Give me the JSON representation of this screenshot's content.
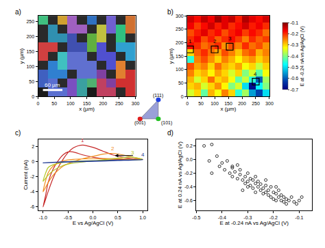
{
  "chart_data": [
    {
      "panel": "a)",
      "type": "image",
      "x_label": "x (µm)",
      "y_label": "y (µm)",
      "xlim": [
        0,
        300
      ],
      "ylim": [
        0,
        270
      ],
      "xticks": [
        0,
        50,
        100,
        150,
        200,
        250,
        300
      ],
      "yticks": [
        0,
        50,
        100,
        150,
        200,
        250
      ],
      "pixels": [
        [
          "#1a1a1a",
          "#5a6fd0",
          "#5a6fd0",
          "#7a4fc0",
          "#3aa0a0",
          "#1a1a1a",
          "#c04060",
          "#c04060",
          "#2a2a2a",
          "#d03030"
        ],
        [
          "#4060c0",
          "#5a6fd0",
          "#2a2a2a",
          "#7a4fc0",
          "#3aa0a0",
          "#50b070",
          "#c04060",
          "#8040a0",
          "#d03030",
          "#d03030"
        ],
        [
          "#4060c0",
          "#3080d0",
          "#3080d0",
          "#2a2a2a",
          "#6070d0",
          "#6070d0",
          "#8040a0",
          "#2a2a2a",
          "#e08030",
          "#d03030"
        ],
        [
          "#2a2a2a",
          "#3080d0",
          "#40c0c0",
          "#6070d0",
          "#6070d0",
          "#6070d0",
          "#2a2a2a",
          "#5050d0",
          "#e08030",
          "#2a2a2a"
        ],
        [
          "#d04040",
          "#2a2a2a",
          "#40c0c0",
          "#6070d0",
          "#6070d0",
          "#2a2a2a",
          "#5050d0",
          "#5050d0",
          "#2a2a2a",
          "#30a0d0"
        ],
        [
          "#d04040",
          "#d04040",
          "#2a2a2a",
          "#4050b0",
          "#4050b0",
          "#60b040",
          "#5050d0",
          "#2a2a2a",
          "#30a0d0",
          "#30a0d0"
        ],
        [
          "#2a2a2a",
          "#3090b0",
          "#3090b0",
          "#4050b0",
          "#2a2a2a",
          "#60b040",
          "#c0c040",
          "#2a2a2a",
          "#30c080",
          "#2a2a2a"
        ],
        [
          "#2a2a2a",
          "#3090b0",
          "#2a2a2a",
          "#a060c0",
          "#a060c0",
          "#2a2a2a",
          "#c0c040",
          "#7060d0",
          "#30c080",
          "#d07030"
        ],
        [
          "#40c080",
          "#2a2a2a",
          "#d0a030",
          "#a060c0",
          "#2a2a2a",
          "#3070c0",
          "#2a2a2a",
          "#7060d0",
          "#2a2a2a",
          "#d07030"
        ]
      ],
      "scale_bar": {
        "text": "60 µm",
        "length": 60
      },
      "orientation_key": {
        "top": "(111)",
        "bottom_left": "(001)",
        "bottom_right": "(101)"
      }
    },
    {
      "panel": "b)",
      "type": "heatmap",
      "x_label": "x (µm)",
      "y_label": "y (µm)",
      "xlim": [
        0,
        300
      ],
      "ylim": [
        0,
        300
      ],
      "xticks": [
        0,
        50,
        100,
        150,
        200,
        250,
        300
      ],
      "yticks": [
        0,
        50,
        100,
        150,
        200,
        250,
        300
      ],
      "cells": [
        [
          -0.35,
          -0.3,
          -0.42,
          -0.28,
          -0.33,
          -0.25,
          -0.3,
          -0.45,
          -0.38,
          -0.55,
          -0.62,
          -0.5
        ],
        [
          -0.3,
          -0.28,
          -0.35,
          -0.3,
          -0.26,
          -0.32,
          -0.4,
          -0.35,
          -0.5,
          -0.68,
          -0.48,
          -0.4
        ],
        [
          -0.28,
          -0.35,
          -0.3,
          -0.24,
          -0.3,
          -0.28,
          -0.33,
          -0.42,
          -0.36,
          -0.45,
          -0.6,
          -0.38
        ],
        [
          -0.25,
          -0.3,
          -0.28,
          -0.32,
          -0.27,
          -0.3,
          -0.35,
          -0.3,
          -0.4,
          -0.35,
          -0.42,
          -0.33
        ],
        [
          -0.22,
          -0.27,
          -0.25,
          -0.3,
          -0.24,
          -0.28,
          -0.3,
          -0.27,
          -0.33,
          -0.3,
          -0.36,
          -0.3
        ],
        [
          -0.45,
          -0.25,
          -0.22,
          -0.26,
          -0.3,
          -0.25,
          -0.28,
          -0.32,
          -0.28,
          -0.26,
          -0.3,
          -0.27
        ],
        [
          -0.3,
          -0.23,
          -0.2,
          -0.24,
          -0.27,
          -0.22,
          -0.25,
          -0.29,
          -0.24,
          -0.22,
          -0.28,
          -0.25
        ],
        [
          -0.18,
          -0.2,
          -0.24,
          -0.22,
          -0.2,
          -0.26,
          -0.22,
          -0.25,
          -0.2,
          -0.24,
          -0.22,
          -0.26
        ],
        [
          -0.2,
          -0.17,
          -0.22,
          -0.19,
          -0.23,
          -0.2,
          -0.18,
          -0.21,
          -0.25,
          -0.2,
          -0.23,
          -0.21
        ],
        [
          -0.22,
          -0.19,
          -0.16,
          -0.2,
          -0.18,
          -0.22,
          -0.19,
          -0.17,
          -0.21,
          -0.18,
          -0.2,
          -0.24
        ],
        [
          -0.17,
          -0.21,
          -0.18,
          -0.15,
          -0.19,
          -0.16,
          -0.2,
          -0.18,
          -0.15,
          -0.19,
          -0.17,
          -0.2
        ],
        [
          -0.15,
          -0.18,
          -0.14,
          -0.17,
          -0.12,
          -0.16,
          -0.14,
          -0.19,
          -0.13,
          -0.16,
          -0.18,
          -0.15
        ]
      ],
      "colorbar": {
        "title": "E at -0.24 nA vs Ag/AgCl (V)",
        "range": [
          -0.7,
          -0.1
        ],
        "ticks": [
          -0.1,
          -0.2,
          -0.3,
          -0.4,
          -0.5,
          -0.6,
          -0.7
        ]
      },
      "boxes": [
        {
          "label": "1",
          "x": 10,
          "y": 175
        },
        {
          "label": "2",
          "x": 100,
          "y": 175
        },
        {
          "label": "3",
          "x": 155,
          "y": 185
        },
        {
          "label": "4",
          "x": 250,
          "y": 55
        }
      ]
    },
    {
      "panel": "c)",
      "type": "line",
      "x_label": "E vs Ag/AgCl (V)",
      "y_label": "Current (nA)",
      "xlim": [
        -1.1,
        1.1
      ],
      "ylim": [
        -6.5,
        3
      ],
      "xticks": [
        {
          "value": -1,
          "label": "-1.0"
        },
        -0.5,
        {
          "value": 0,
          "label": "0.0"
        },
        0.5,
        {
          "value": 1,
          "label": "1.0"
        }
      ],
      "yticks": [
        -6,
        -4,
        -2,
        0,
        2
      ],
      "series": [
        {
          "name": "1",
          "color": "#c62828",
          "x": [
            1.0,
            0.8,
            0.6,
            0.4,
            0.2,
            0.0,
            -0.2,
            -0.3,
            -0.4,
            -0.5,
            -0.6,
            -0.7,
            -0.8,
            -0.9,
            -1.0,
            -0.95,
            -0.9,
            -0.8,
            -0.7,
            -0.6,
            -0.5,
            -0.4,
            -0.2,
            0.0,
            0.2,
            0.5,
            1.0
          ],
          "values": [
            0.3,
            0.4,
            0.6,
            0.9,
            1.4,
            1.9,
            2.2,
            2.1,
            1.8,
            1.2,
            0.3,
            -0.8,
            -2.2,
            -4.0,
            -6.0,
            -4.5,
            -2.8,
            -1.0,
            0.1,
            0.9,
            1.3,
            1.3,
            0.9,
            0.6,
            0.4,
            0.3,
            0.3
          ]
        },
        {
          "name": "2",
          "color": "#f08c1c",
          "x": [
            1.0,
            0.8,
            0.6,
            0.4,
            0.2,
            0.0,
            -0.2,
            -0.4,
            -0.6,
            -0.8,
            -0.9,
            -1.0,
            -0.9,
            -0.8,
            -0.6,
            -0.4,
            0.0,
            0.5,
            1.0
          ],
          "values": [
            0.3,
            0.6,
            0.9,
            1.1,
            1.0,
            0.7,
            0.4,
            0.0,
            -0.6,
            -1.8,
            -2.8,
            -4.0,
            -1.5,
            -0.6,
            0.1,
            0.3,
            0.4,
            0.4,
            0.3
          ]
        },
        {
          "name": "3",
          "color": "#b5c82a",
          "x": [
            1.0,
            0.8,
            0.6,
            0.4,
            0.2,
            0.0,
            -0.4,
            -0.6,
            -0.8,
            -0.9,
            -1.0,
            -0.9,
            -0.8,
            -0.5,
            0.0,
            0.5,
            1.0
          ],
          "values": [
            0.3,
            0.6,
            0.55,
            0.4,
            0.25,
            0.1,
            -0.2,
            -0.5,
            -1.2,
            -1.8,
            -2.6,
            -0.8,
            -0.4,
            0.0,
            0.15,
            0.2,
            0.3
          ]
        },
        {
          "name": "4",
          "color": "#1f3a93",
          "x": [
            1.0,
            0.5,
            0.0,
            -0.5,
            -1.0,
            -0.5,
            0.0,
            0.5,
            1.0
          ],
          "values": [
            0.25,
            0.2,
            0.1,
            0.0,
            -0.15,
            -0.05,
            0.05,
            0.15,
            0.25
          ]
        }
      ]
    },
    {
      "panel": "d)",
      "type": "scatter",
      "x_label": "E at -0.24 nA vs Ag/AgCl (V)",
      "y_label": "E at 0.24 nA vs Ag/AgCl (V)",
      "xlim": [
        -0.5,
        -0.05
      ],
      "ylim": [
        -0.75,
        0.3
      ],
      "xticks": [
        -0.5,
        -0.4,
        -0.3,
        -0.2,
        -0.1
      ],
      "yticks": [
        -0.6,
        -0.4,
        -0.2,
        {
          "value": 0,
          "label": "0.0"
        },
        0.2
      ],
      "marker": "open circle",
      "color": "#000000",
      "x": [
        -0.47,
        -0.45,
        -0.44,
        -0.42,
        -0.41,
        -0.4,
        -0.39,
        -0.38,
        -0.37,
        -0.36,
        -0.36,
        -0.35,
        -0.34,
        -0.34,
        -0.33,
        -0.33,
        -0.32,
        -0.31,
        -0.31,
        -0.3,
        -0.3,
        -0.29,
        -0.29,
        -0.28,
        -0.28,
        -0.27,
        -0.27,
        -0.26,
        -0.26,
        -0.25,
        -0.25,
        -0.24,
        -0.24,
        -0.23,
        -0.23,
        -0.22,
        -0.22,
        -0.21,
        -0.21,
        -0.2,
        -0.2,
        -0.19,
        -0.19,
        -0.18,
        -0.18,
        -0.17,
        -0.17,
        -0.16,
        -0.16,
        -0.15,
        -0.15,
        -0.14,
        -0.13,
        -0.12,
        -0.11,
        -0.1,
        -0.09,
        -0.44,
        -0.36,
        -0.32,
        -0.27,
        -0.23,
        -0.19,
        -0.3
      ],
      "values": [
        0.2,
        -0.02,
        0.22,
        0.05,
        -0.1,
        -0.05,
        -0.15,
        -0.02,
        -0.2,
        -0.12,
        -0.25,
        -0.18,
        -0.08,
        -0.28,
        -0.22,
        -0.15,
        -0.3,
        -0.25,
        -0.35,
        -0.2,
        -0.32,
        -0.28,
        -0.38,
        -0.3,
        -0.42,
        -0.35,
        -0.25,
        -0.4,
        -0.32,
        -0.45,
        -0.36,
        -0.42,
        -0.5,
        -0.38,
        -0.48,
        -0.45,
        -0.52,
        -0.4,
        -0.55,
        -0.48,
        -0.58,
        -0.5,
        -0.6,
        -0.55,
        -0.45,
        -0.6,
        -0.52,
        -0.62,
        -0.55,
        -0.58,
        -0.65,
        -0.6,
        -0.55,
        -0.62,
        -0.65,
        -0.6,
        -0.55,
        -0.2,
        -0.1,
        -0.45,
        -0.48,
        -0.3,
        -0.4,
        -0.4
      ]
    }
  ]
}
